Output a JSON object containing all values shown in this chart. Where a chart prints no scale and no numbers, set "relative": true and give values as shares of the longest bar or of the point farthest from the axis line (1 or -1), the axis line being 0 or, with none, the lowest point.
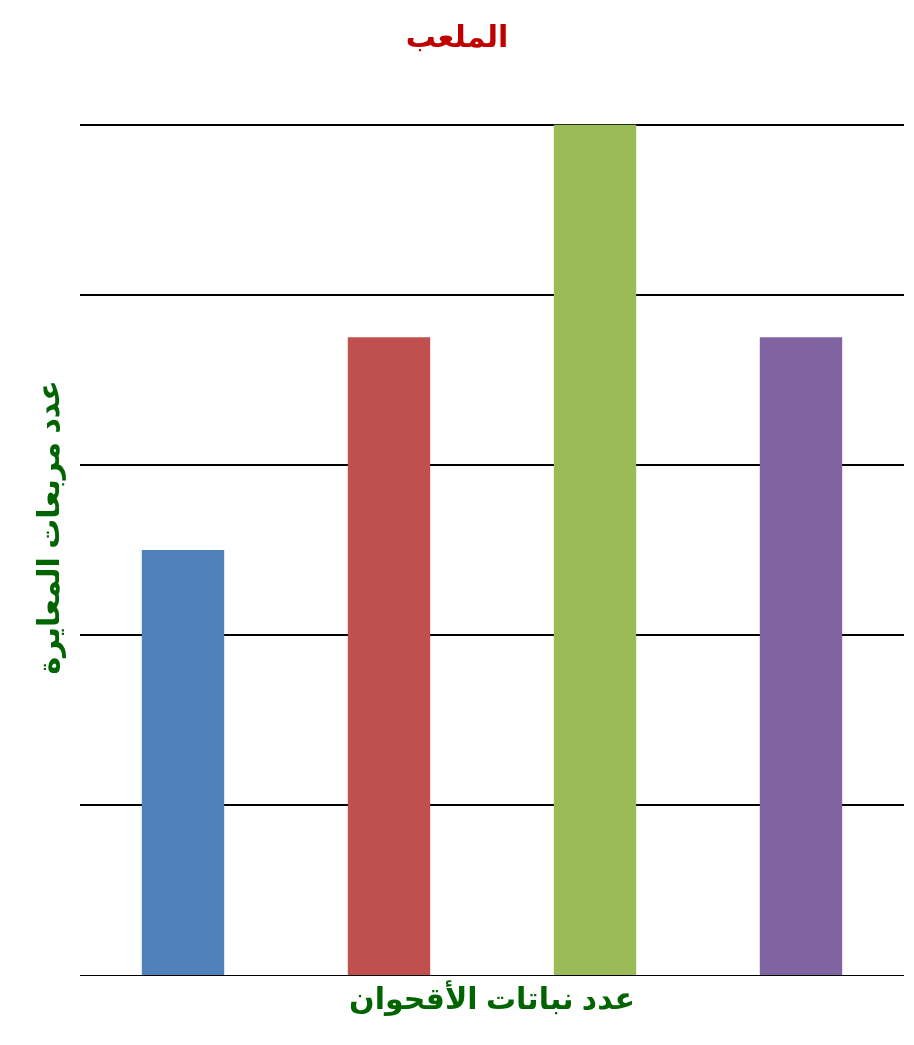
{
  "chart_data": {
    "type": "bar",
    "title": "الملعب",
    "xlabel": "عدد نباتات الأقحوان",
    "ylabel": "عدد مربعات المعايرة",
    "categories": [
      null,
      null,
      null,
      null
    ],
    "values": [
      0.5,
      0.75,
      1,
      0.75
    ],
    "colors": [
      "#4f81bd",
      "#c0504d",
      "#9bbb59",
      "#8064a2"
    ],
    "relative": true,
    "grid": "y"
  }
}
